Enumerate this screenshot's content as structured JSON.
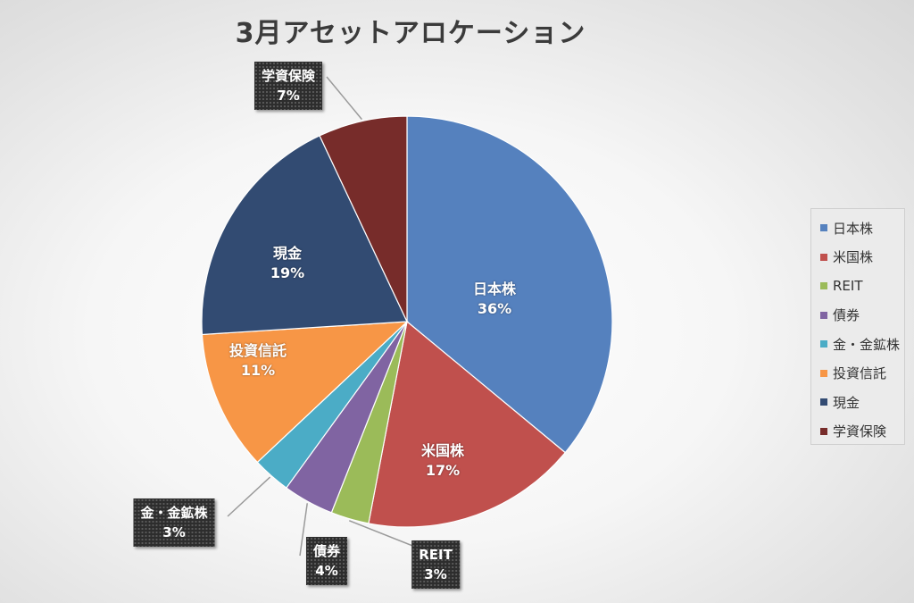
{
  "chart_data": {
    "type": "pie",
    "title": "3月アセットアロケーション",
    "slices": [
      {
        "label": "日本株",
        "value": 36,
        "value_label": "36%",
        "color": "#5581be"
      },
      {
        "label": "米国株",
        "value": 17,
        "value_label": "17%",
        "color": "#c0504d"
      },
      {
        "label": "REIT",
        "value": 3,
        "value_label": "3%",
        "color": "#9bbb59"
      },
      {
        "label": "債券",
        "value": 4,
        "value_label": "4%",
        "color": "#8064a2"
      },
      {
        "label": "金・金鉱株",
        "value": 3,
        "value_label": "3%",
        "color": "#4bacc6"
      },
      {
        "label": "投資信託",
        "value": 11,
        "value_label": "11%",
        "color": "#f79646"
      },
      {
        "label": "現金",
        "value": 19,
        "value_label": "19%",
        "color": "#324b72"
      },
      {
        "label": "学資保険",
        "value": 7,
        "value_label": "7%",
        "color": "#772c2a"
      }
    ],
    "legend": {
      "position": "right"
    }
  }
}
